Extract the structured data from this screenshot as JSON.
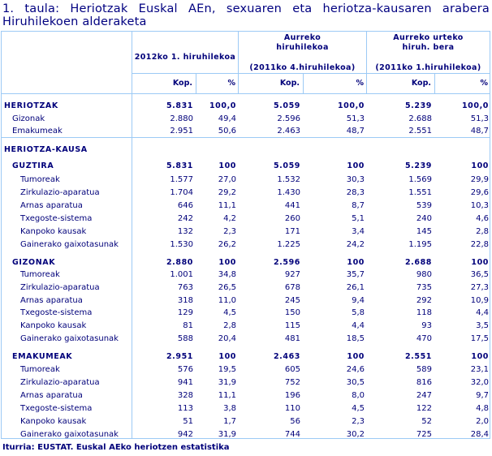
{
  "title": {
    "line1": "1. taula: Heriotzak Euskal AEn, sexuaren eta heriotza-kausaren arabera",
    "line2": "Hiruhilekoen alderaketa"
  },
  "header": {
    "col1": "2012ko 1. hiruhilekoa",
    "col2": "Aurreko hiruhilekoa",
    "col2_sub": "(2011ko 4.hiruhilekoa)",
    "col3": "Aurreko urteko hiruh. bera",
    "col3_sub": "(2011ko 1.hiruhilekoa)",
    "kop": "Kop.",
    "pct": "%"
  },
  "rows": [
    {
      "label": "HERIOTZAK",
      "level": 0,
      "bold": true,
      "values": [
        "5.831",
        "100,0",
        "5.059",
        "100,0",
        "5.239",
        "100,0"
      ]
    },
    {
      "label": "Gizonak",
      "level": 1,
      "bold": false,
      "values": [
        "2.880",
        "49,4",
        "2.596",
        "51,3",
        "2.688",
        "51,3"
      ]
    },
    {
      "label": "Emakumeak",
      "level": 1,
      "bold": false,
      "values": [
        "2.951",
        "50,6",
        "2.463",
        "48,7",
        "2.551",
        "48,7"
      ]
    },
    {
      "label": "HERIOTZA-KAUSA",
      "level": 0,
      "bold": true,
      "values": []
    },
    {
      "label": "GUZTIRA",
      "level": 1,
      "bold": true,
      "values": [
        "5.831",
        "100",
        "5.059",
        "100",
        "5.239",
        "100"
      ]
    },
    {
      "label": "Tumoreak",
      "level": 2,
      "bold": false,
      "values": [
        "1.577",
        "27,0",
        "1.532",
        "30,3",
        "1.569",
        "29,9"
      ]
    },
    {
      "label": "Zirkulazio-aparatua",
      "level": 2,
      "bold": false,
      "values": [
        "1.704",
        "29,2",
        "1.430",
        "28,3",
        "1.551",
        "29,6"
      ]
    },
    {
      "label": "Arnas aparatua",
      "level": 2,
      "bold": false,
      "values": [
        "646",
        "11,1",
        "441",
        "8,7",
        "539",
        "10,3"
      ]
    },
    {
      "label": "Txegoste-sistema",
      "level": 2,
      "bold": false,
      "values": [
        "242",
        "4,2",
        "260",
        "5,1",
        "240",
        "4,6"
      ]
    },
    {
      "label": "Kanpoko kausak",
      "level": 2,
      "bold": false,
      "values": [
        "132",
        "2,3",
        "171",
        "3,4",
        "145",
        "2,8"
      ]
    },
    {
      "label": "Gainerako gaixotasunak",
      "level": 2,
      "bold": false,
      "values": [
        "1.530",
        "26,2",
        "1.225",
        "24,2",
        "1.195",
        "22,8"
      ]
    },
    {
      "label": "GIZONAK",
      "level": 1,
      "bold": true,
      "values": [
        "2.880",
        "100",
        "2.596",
        "100",
        "2.688",
        "100"
      ]
    },
    {
      "label": "Tumoreak",
      "level": 2,
      "bold": false,
      "values": [
        "1.001",
        "34,8",
        "927",
        "35,7",
        "980",
        "36,5"
      ]
    },
    {
      "label": "Zirkulazio-aparatua",
      "level": 2,
      "bold": false,
      "values": [
        "763",
        "26,5",
        "678",
        "26,1",
        "735",
        "27,3"
      ]
    },
    {
      "label": "Arnas aparatua",
      "level": 2,
      "bold": false,
      "values": [
        "318",
        "11,0",
        "245",
        "9,4",
        "292",
        "10,9"
      ]
    },
    {
      "label": "Txegoste-sistema",
      "level": 2,
      "bold": false,
      "values": [
        "129",
        "4,5",
        "150",
        "5,8",
        "118",
        "4,4"
      ]
    },
    {
      "label": "Kanpoko kausak",
      "level": 2,
      "bold": false,
      "values": [
        "81",
        "2,8",
        "115",
        "4,4",
        "93",
        "3,5"
      ]
    },
    {
      "label": "Gainerako gaixotasunak",
      "level": 2,
      "bold": false,
      "values": [
        "588",
        "20,4",
        "481",
        "18,5",
        "470",
        "17,5"
      ]
    },
    {
      "label": "EMAKUMEAK",
      "level": 1,
      "bold": true,
      "values": [
        "2.951",
        "100",
        "2.463",
        "100",
        "2.551",
        "100"
      ]
    },
    {
      "label": "Tumoreak",
      "level": 2,
      "bold": false,
      "values": [
        "576",
        "19,5",
        "605",
        "24,6",
        "589",
        "23,1"
      ]
    },
    {
      "label": "Zirkulazio-aparatua",
      "level": 2,
      "bold": false,
      "values": [
        "941",
        "31,9",
        "752",
        "30,5",
        "816",
        "32,0"
      ]
    },
    {
      "label": "Arnas aparatua",
      "level": 2,
      "bold": false,
      "values": [
        "328",
        "11,1",
        "196",
        "8,0",
        "247",
        "9,7"
      ]
    },
    {
      "label": "Txegoste-sistema",
      "level": 2,
      "bold": false,
      "values": [
        "113",
        "3,8",
        "110",
        "4,5",
        "122",
        "4,8"
      ]
    },
    {
      "label": "Kanpoko kausak",
      "level": 2,
      "bold": false,
      "values": [
        "51",
        "1,7",
        "56",
        "2,3",
        "52",
        "2,0"
      ]
    },
    {
      "label": "Gainerako gaixotasunak",
      "level": 2,
      "bold": false,
      "values": [
        "942",
        "31,9",
        "744",
        "30,2",
        "725",
        "28,4"
      ]
    }
  ],
  "source": "Iturria: EUSTAT. Euskal AEko heriotzen estatistika",
  "colors": {
    "text": "#000080",
    "border": "#9ccaf5"
  }
}
